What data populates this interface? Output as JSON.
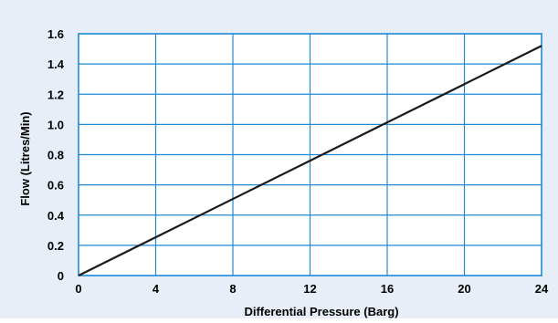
{
  "colors": {
    "panel_background": "#e8eef8",
    "plot_background": "#ffffff",
    "grid": "#1e8ad6",
    "line": "#1a1a1a"
  },
  "chart_data": {
    "type": "line",
    "title": "",
    "xlabel": "Differential Pressure (Barg)",
    "ylabel": "Flow (Litres/Min)",
    "xlim": [
      0,
      24
    ],
    "ylim": [
      0,
      1.6
    ],
    "x_ticks": [
      0,
      4,
      8,
      12,
      16,
      20,
      24
    ],
    "y_ticks": [
      0,
      0.2,
      0.4,
      0.6,
      0.8,
      1.0,
      1.2,
      1.4,
      1.6
    ],
    "x_tick_labels": [
      "0",
      "4",
      "8",
      "12",
      "16",
      "20",
      "24"
    ],
    "y_tick_labels": [
      "0",
      "0.2",
      "0.4",
      "0.6",
      "0.8",
      "1.0",
      "1.2",
      "1.4",
      "1.6"
    ],
    "grid": true,
    "legend": "none",
    "series": [
      {
        "x": [
          0,
          24
        ],
        "y": [
          0,
          1.52
        ]
      }
    ]
  }
}
